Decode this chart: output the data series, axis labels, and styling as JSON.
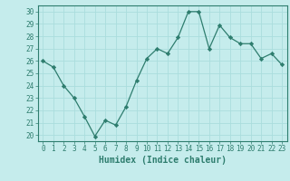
{
  "x": [
    0,
    1,
    2,
    3,
    4,
    5,
    6,
    7,
    8,
    9,
    10,
    11,
    12,
    13,
    14,
    15,
    16,
    17,
    18,
    19,
    20,
    21,
    22,
    23
  ],
  "y": [
    26,
    25.5,
    24,
    23,
    21.5,
    19.9,
    21.2,
    20.8,
    22.3,
    24.4,
    26.2,
    27,
    26.6,
    27.9,
    30,
    30,
    27,
    28.9,
    27.9,
    27.4,
    27.4,
    26.2,
    26.6,
    25.7
  ],
  "line_color": "#2e7d6e",
  "marker": "D",
  "marker_size": 2.2,
  "bg_color": "#c5ecec",
  "grid_color": "#aadddd",
  "xlabel": "Humidex (Indice chaleur)",
  "ylim": [
    19.5,
    30.5
  ],
  "xlim": [
    -0.5,
    23.5
  ],
  "yticks": [
    20,
    21,
    22,
    23,
    24,
    25,
    26,
    27,
    28,
    29,
    30
  ],
  "xticks": [
    0,
    1,
    2,
    3,
    4,
    5,
    6,
    7,
    8,
    9,
    10,
    11,
    12,
    13,
    14,
    15,
    16,
    17,
    18,
    19,
    20,
    21,
    22,
    23
  ],
  "tick_fontsize": 5.5,
  "label_fontsize": 7
}
